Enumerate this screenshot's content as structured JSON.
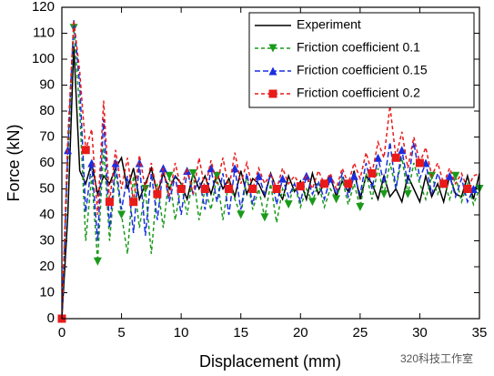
{
  "chart_data": {
    "type": "line",
    "x_label": "Displacement (mm)",
    "y_label": "Force (kN)",
    "watermark": "320科技工作室",
    "xlim": [
      0,
      35
    ],
    "xticks": [
      0,
      5,
      10,
      15,
      20,
      25,
      30,
      35
    ],
    "ylim": [
      0,
      120
    ],
    "yticks": [
      0,
      10,
      20,
      30,
      40,
      50,
      60,
      70,
      80,
      90,
      100,
      110,
      120
    ],
    "legend": "upper-right",
    "x": [
      0,
      0.5,
      1,
      1.5,
      2,
      2.5,
      3,
      3.5,
      4,
      4.5,
      5,
      5.5,
      6,
      6.5,
      7,
      7.5,
      8,
      8.5,
      9,
      9.5,
      10,
      10.5,
      11,
      11.5,
      12,
      12.5,
      13,
      13.5,
      14,
      14.5,
      15,
      15.5,
      16,
      16.5,
      17,
      17.5,
      18,
      18.5,
      19,
      19.5,
      20,
      20.5,
      21,
      21.5,
      22,
      22.5,
      23,
      23.5,
      24,
      24.5,
      25,
      25.5,
      26,
      26.5,
      27,
      27.5,
      28,
      28.5,
      29,
      29.5,
      30,
      30.5,
      31,
      31.5,
      32,
      32.5,
      33,
      33.5,
      34,
      34.5,
      35
    ],
    "series": [
      {
        "name": "Experiment",
        "color": "#000000",
        "dash": "none",
        "marker": "none",
        "values": [
          0,
          40,
          105,
          57,
          52,
          60,
          48,
          55,
          52,
          58,
          62,
          50,
          58,
          46,
          52,
          58,
          48,
          56,
          50,
          55,
          52,
          46,
          56,
          50,
          55,
          48,
          56,
          50,
          54,
          47,
          57,
          48,
          54,
          52,
          47,
          56,
          50,
          46,
          55,
          49,
          53,
          46,
          56,
          48,
          52,
          55,
          47,
          53,
          49,
          57,
          46,
          55,
          52,
          46,
          55,
          47,
          50,
          45,
          55,
          50,
          45,
          55,
          47,
          52,
          45,
          55,
          48,
          47,
          55,
          46,
          56
        ]
      },
      {
        "name": "Friction coefficient 0.1",
        "color": "#1a9a1a",
        "dash": "4,3",
        "marker": "triangle-down",
        "values": [
          0,
          60,
          112,
          80,
          30,
          55,
          22,
          66,
          30,
          57,
          40,
          25,
          55,
          35,
          50,
          25,
          52,
          35,
          55,
          38,
          52,
          40,
          56,
          38,
          50,
          42,
          55,
          38,
          53,
          46,
          40,
          55,
          42,
          50,
          39,
          52,
          37,
          50,
          44,
          52,
          43,
          50,
          45,
          52,
          43,
          50,
          46,
          54,
          44,
          52,
          43,
          56,
          46,
          58,
          48,
          60,
          50,
          62,
          48,
          60,
          52,
          46,
          55,
          48,
          54,
          46,
          55,
          45,
          52,
          44,
          50
        ]
      },
      {
        "name": "Friction coefficient 0.15",
        "color": "#1a2ee0",
        "dash": "6,3",
        "marker": "triangle-up",
        "values": [
          0,
          65,
          115,
          90,
          41,
          60,
          30,
          77,
          35,
          60,
          42,
          55,
          33,
          60,
          32,
          56,
          38,
          58,
          45,
          55,
          40,
          57,
          48,
          54,
          42,
          58,
          45,
          56,
          40,
          58,
          42,
          56,
          44,
          55,
          48,
          56,
          44,
          54,
          47,
          52,
          45,
          55,
          48,
          53,
          46,
          54,
          48,
          56,
          47,
          55,
          48,
          60,
          50,
          62,
          52,
          68,
          50,
          65,
          52,
          68,
          54,
          60,
          48,
          56,
          50,
          55,
          47,
          54,
          45,
          50,
          52
        ]
      },
      {
        "name": "Friction coefficient 0.2",
        "color": "#e81a1a",
        "dash": "4,3",
        "marker": "square",
        "values": [
          0,
          70,
          115,
          95,
          65,
          73,
          40,
          84,
          45,
          65,
          50,
          62,
          45,
          63,
          50,
          60,
          48,
          58,
          47,
          60,
          50,
          58,
          48,
          62,
          50,
          61,
          52,
          62,
          50,
          64,
          52,
          60,
          50,
          58,
          52,
          56,
          50,
          58,
          52,
          55,
          51,
          55,
          50,
          57,
          52,
          56,
          50,
          58,
          52,
          60,
          54,
          64,
          56,
          68,
          62,
          82,
          62,
          72,
          58,
          70,
          60,
          66,
          55,
          60,
          52,
          58,
          52,
          56,
          50,
          55,
          56
        ]
      }
    ]
  }
}
